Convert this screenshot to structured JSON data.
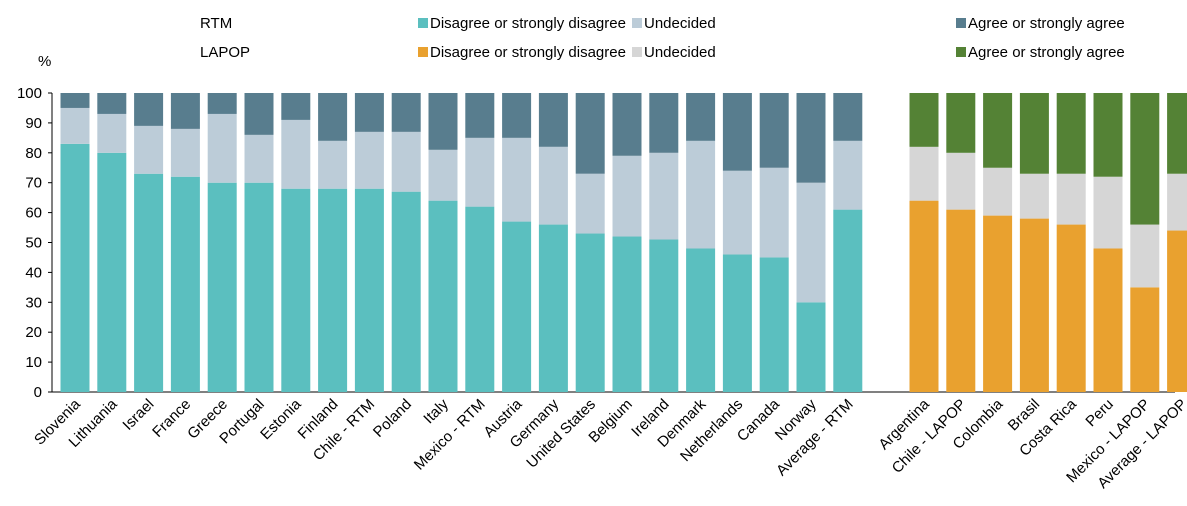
{
  "chart_data": {
    "type": "bar",
    "stacked": true,
    "ylabel": "%",
    "ylim": [
      0,
      100
    ],
    "yticks": [
      0,
      10,
      20,
      30,
      40,
      50,
      60,
      70,
      80,
      90,
      100
    ],
    "grid": false,
    "legend": {
      "placement": "top",
      "groups": [
        {
          "label": "RTM",
          "entries": [
            {
              "label": "Disagree or strongly disagree",
              "color": "#5bbfbf"
            },
            {
              "label": "Undecided",
              "color": "#bcccd8"
            },
            {
              "label": "Agree or strongly agree",
              "color": "#587d8e"
            }
          ]
        },
        {
          "label": "LAPOP",
          "entries": [
            {
              "label": "Disagree or strongly disagree",
              "color": "#e9a12f"
            },
            {
              "label": "Undecided",
              "color": "#d6d6d6"
            },
            {
              "label": "Agree or strongly agree",
              "color": "#548235"
            }
          ]
        }
      ]
    },
    "groups": [
      {
        "name": "RTM",
        "colors": [
          "#5bbfbf",
          "#bcccd8",
          "#587d8e"
        ],
        "categories": [
          "Slovenia",
          "Lithuania",
          "Israel",
          "France",
          "Greece",
          "Portugal",
          "Estonia",
          "Finland",
          "Chile - RTM",
          "Poland",
          "Italy",
          "Mexico - RTM",
          "Austria",
          "Germany",
          "United States",
          "Belgium",
          "Ireland",
          "Denmark",
          "Netherlands",
          "Canada",
          "Norway",
          "Average - RTM"
        ],
        "series": [
          {
            "name": "Disagree or strongly disagree",
            "values": [
              83,
              80,
              73,
              72,
              70,
              70,
              68,
              68,
              68,
              67,
              64,
              62,
              57,
              56,
              53,
              52,
              51,
              48,
              46,
              45,
              30,
              61
            ]
          },
          {
            "name": "Undecided",
            "values": [
              12,
              13,
              16,
              16,
              23,
              16,
              23,
              16,
              19,
              20,
              17,
              23,
              28,
              26,
              20,
              27,
              29,
              36,
              28,
              30,
              40,
              23
            ]
          },
          {
            "name": "Agree or strongly agree",
            "values": [
              5,
              7,
              11,
              12,
              7,
              14,
              9,
              16,
              13,
              13,
              19,
              15,
              15,
              18,
              27,
              21,
              20,
              16,
              26,
              25,
              30,
              16
            ]
          }
        ]
      },
      {
        "name": "LAPOP",
        "colors": [
          "#e9a12f",
          "#d6d6d6",
          "#548235"
        ],
        "categories": [
          "Argentina",
          "Chile - LAPOP",
          "Colombia",
          "Brasil",
          "Costa Rica",
          "Peru",
          "Mexico - LAPOP",
          "Average - LAPOP"
        ],
        "series": [
          {
            "name": "Disagree or strongly disagree",
            "values": [
              64,
              61,
              59,
              58,
              56,
              48,
              35,
              54
            ]
          },
          {
            "name": "Undecided",
            "values": [
              18,
              19,
              16,
              15,
              17,
              24,
              21,
              19
            ]
          },
          {
            "name": "Agree or strongly agree",
            "values": [
              18,
              20,
              25,
              27,
              27,
              28,
              44,
              27
            ]
          }
        ]
      }
    ]
  }
}
